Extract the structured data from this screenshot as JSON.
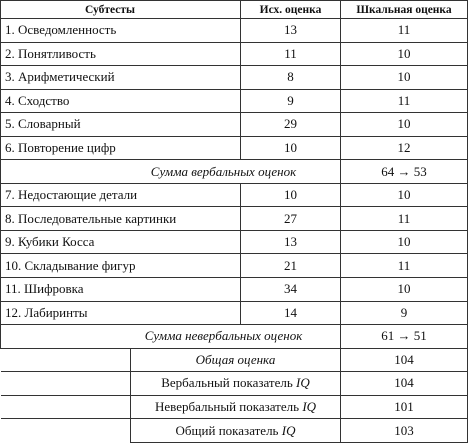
{
  "table": {
    "header": [
      "Субтесты",
      "Исх. оценка",
      "Шкальная оценка"
    ],
    "rows": [
      [
        "1. Осведомленность",
        13,
        11
      ],
      [
        "2. Понятливость",
        11,
        10
      ],
      [
        "3. Арифметический",
        8,
        10
      ],
      [
        "4. Сходство",
        9,
        11
      ],
      [
        "5. Словарный",
        29,
        10
      ],
      [
        "6. Повторение цифр",
        10,
        12
      ]
    ],
    "verbal_sum": {
      "label": "Сумма вербальных оценок",
      "value": "64 → 53"
    },
    "rows2": [
      [
        "7. Недостающие детали",
        10,
        10
      ],
      [
        "8. Последовательные картинки",
        27,
        11
      ],
      [
        "9. Кубики Косса",
        13,
        10
      ],
      [
        "10. Складывание фигур",
        21,
        11
      ],
      [
        "11. Шифровка",
        34,
        10
      ],
      [
        "12. Лабиринты",
        14,
        9
      ]
    ],
    "nonverbal_sum": {
      "label": "Сумма невербальных оценок",
      "value": "61 → 51"
    },
    "totals": [
      {
        "label": "Общая оценка",
        "value": 104
      },
      {
        "label": "Вербальный показатель",
        "em": "IQ",
        "value": 104
      },
      {
        "label": "Невербальный показатель",
        "em": "IQ",
        "value": 101
      },
      {
        "label": "Общий показатель",
        "em": "IQ",
        "value": 103
      }
    ]
  }
}
